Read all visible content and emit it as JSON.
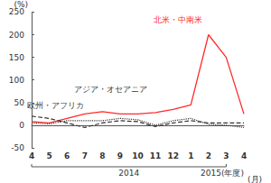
{
  "chart_data": {
    "type": "line",
    "y_label": "(%)",
    "x_label": "(月)",
    "categories": [
      "4",
      "5",
      "6",
      "7",
      "8",
      "9",
      "10",
      "11",
      "12",
      "1",
      "2",
      "3",
      "4"
    ],
    "category_groups": [
      {
        "label": "2014",
        "count": 12
      },
      {
        "label": "2015(年度)",
        "count": 1
      }
    ],
    "series": [
      {
        "name": "北米・中南米",
        "color": "#ff2a2a",
        "line_style": "solid",
        "values": [
          8,
          5,
          15,
          25,
          30,
          25,
          25,
          28,
          35,
          45,
          200,
          150,
          25
        ]
      },
      {
        "name": "アジア・オセアニア",
        "color": "#333333",
        "line_style": "dotted",
        "values": [
          5,
          3,
          10,
          10,
          10,
          15,
          12,
          0,
          10,
          15,
          2,
          0,
          -5
        ]
      },
      {
        "name": "欧州・アフリカ",
        "color": "#333333",
        "line_style": "dashed",
        "values": [
          20,
          15,
          5,
          -5,
          5,
          10,
          8,
          -3,
          5,
          10,
          5,
          5,
          5
        ]
      }
    ],
    "ylim": [
      -50,
      250
    ],
    "yticks": [
      -50,
      0,
      50,
      100,
      150,
      200,
      250
    ],
    "grid": false
  }
}
